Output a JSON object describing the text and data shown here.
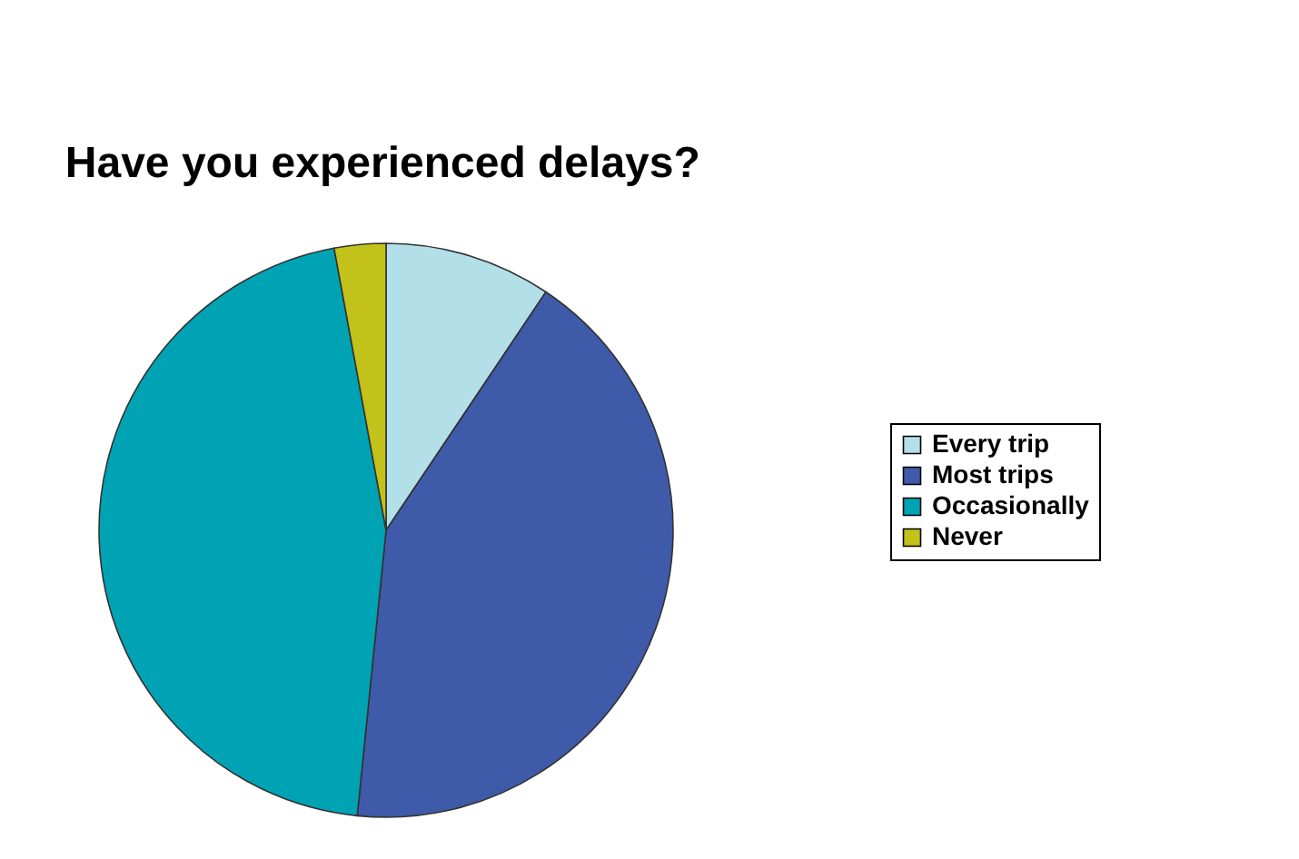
{
  "chart_data": {
    "type": "pie",
    "title": "Have you experienced delays?",
    "categories": [
      "Every trip",
      "Most trips",
      "Occasionally",
      "Never"
    ],
    "values": [
      9.4,
      42.2,
      45.5,
      2.9
    ],
    "colors": [
      "#b3dfe8",
      "#3f5aa8",
      "#00a3b4",
      "#c2c21a"
    ],
    "legend": "right"
  }
}
